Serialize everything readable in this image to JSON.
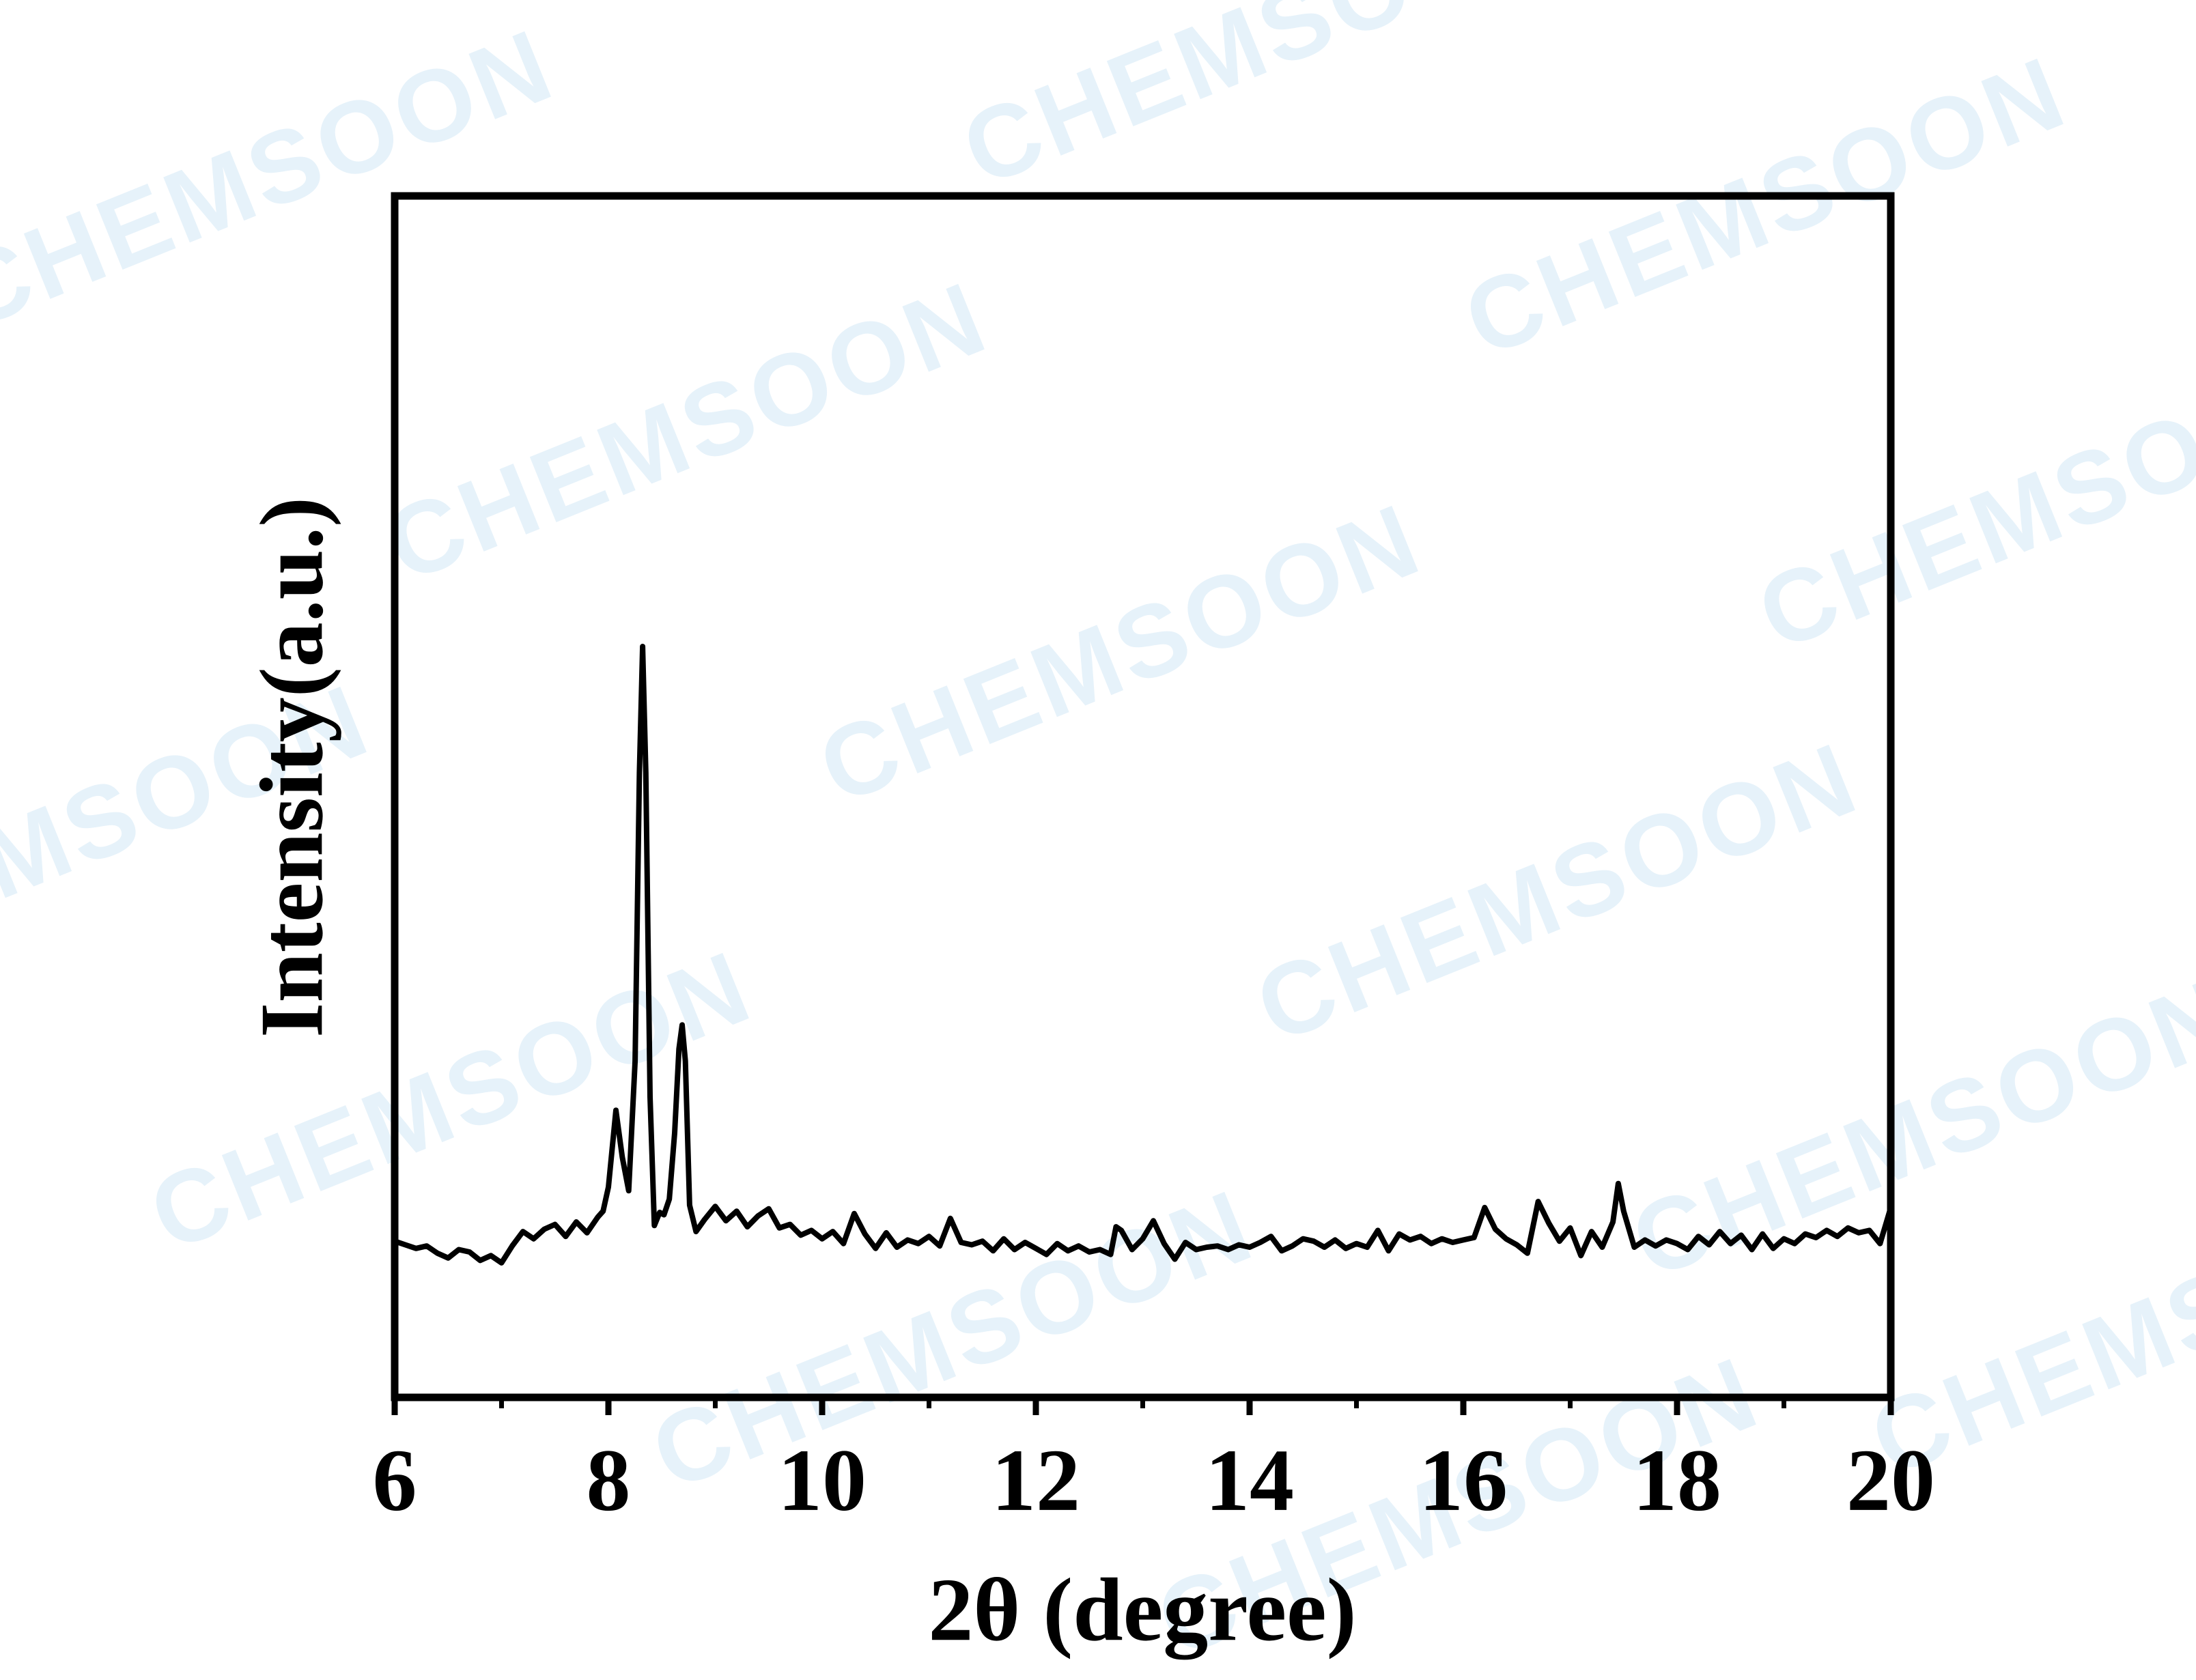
{
  "watermark": "CHEMSOON",
  "chart_data": {
    "type": "line",
    "xlabel": "2θ (degree)",
    "ylabel": "Intensity(a.u.)",
    "xlim": [
      6,
      20
    ],
    "xticks": [
      6,
      8,
      10,
      12,
      14,
      16,
      18,
      20
    ],
    "xminorticks": [
      7,
      9,
      11,
      13,
      15,
      17,
      19
    ],
    "ylim": [
      0,
      100
    ],
    "series": [
      {
        "color": "#000000",
        "x": [
          6.0,
          6.1,
          6.2,
          6.3,
          6.4,
          6.5,
          6.6,
          6.7,
          6.8,
          6.9,
          7.0,
          7.1,
          7.2,
          7.3,
          7.4,
          7.5,
          7.6,
          7.7,
          7.8,
          7.9,
          7.95,
          8.0,
          8.07,
          8.13,
          8.19,
          8.25,
          8.29,
          8.32,
          8.35,
          8.39,
          8.43,
          8.48,
          8.52,
          8.57,
          8.62,
          8.66,
          8.69,
          8.72,
          8.76,
          8.82,
          8.9,
          9.0,
          9.1,
          9.2,
          9.3,
          9.4,
          9.5,
          9.6,
          9.7,
          9.8,
          9.9,
          10.0,
          10.1,
          10.2,
          10.3,
          10.4,
          10.5,
          10.6,
          10.7,
          10.8,
          10.9,
          11.0,
          11.1,
          11.2,
          11.3,
          11.4,
          11.5,
          11.6,
          11.7,
          11.8,
          11.9,
          12.0,
          12.1,
          12.2,
          12.3,
          12.4,
          12.5,
          12.6,
          12.7,
          12.75,
          12.8,
          12.9,
          13.0,
          13.1,
          13.2,
          13.3,
          13.4,
          13.5,
          13.6,
          13.7,
          13.8,
          13.9,
          14.0,
          14.1,
          14.2,
          14.3,
          14.4,
          14.5,
          14.6,
          14.7,
          14.8,
          14.9,
          15.0,
          15.1,
          15.2,
          15.3,
          15.4,
          15.5,
          15.6,
          15.7,
          15.8,
          15.9,
          16.0,
          16.1,
          16.2,
          16.3,
          16.4,
          16.5,
          16.6,
          16.7,
          16.8,
          16.9,
          17.0,
          17.1,
          17.2,
          17.3,
          17.4,
          17.45,
          17.5,
          17.6,
          17.7,
          17.8,
          17.9,
          18.0,
          18.1,
          18.2,
          18.3,
          18.4,
          18.5,
          18.6,
          18.7,
          18.8,
          18.9,
          19.0,
          19.1,
          19.2,
          19.3,
          19.4,
          19.5,
          19.6,
          19.7,
          19.8,
          19.9,
          20.0
        ],
        "values": [
          13.0,
          12.7,
          12.4,
          12.6,
          12.0,
          11.6,
          12.3,
          12.1,
          11.4,
          11.8,
          11.2,
          12.6,
          13.8,
          13.2,
          14.0,
          14.4,
          13.4,
          14.6,
          13.7,
          15.0,
          15.5,
          17.5,
          23.9,
          20.0,
          17.2,
          28,
          52,
          62.5,
          52,
          25,
          14.3,
          15.4,
          15.2,
          16.5,
          22,
          29,
          31,
          28,
          16,
          13.8,
          14.8,
          15.9,
          14.7,
          15.5,
          14.2,
          15.1,
          15.7,
          14.1,
          14.4,
          13.5,
          13.9,
          13.2,
          13.8,
          12.8,
          15.3,
          13.6,
          12.4,
          13.7,
          12.5,
          13.1,
          12.8,
          13.4,
          12.6,
          14.9,
          12.9,
          12.7,
          13.0,
          12.2,
          13.2,
          12.3,
          12.9,
          12.4,
          11.9,
          12.8,
          12.2,
          12.6,
          12.1,
          12.3,
          11.9,
          14.2,
          13.9,
          12.3,
          13.2,
          14.7,
          12.8,
          11.5,
          12.9,
          12.3,
          12.5,
          12.6,
          12.3,
          12.7,
          12.5,
          12.9,
          13.4,
          12.2,
          12.6,
          13.2,
          13.0,
          12.5,
          13.1,
          12.4,
          12.8,
          12.5,
          13.9,
          12.2,
          13.6,
          13.1,
          13.4,
          12.8,
          13.2,
          12.9,
          13.1,
          13.3,
          15.8,
          14.0,
          13.2,
          12.7,
          12.0,
          16.3,
          14.5,
          13.0,
          14.1,
          11.8,
          13.8,
          12.5,
          14.6,
          17.8,
          15.5,
          12.5,
          13.1,
          12.6,
          13.1,
          12.8,
          12.3,
          13.4,
          12.7,
          13.8,
          12.8,
          13.5,
          12.3,
          13.6,
          12.4,
          13.2,
          12.8,
          13.6,
          13.3,
          13.9,
          13.4,
          14.1,
          13.7,
          13.9,
          12.8,
          15.8
        ]
      }
    ]
  }
}
